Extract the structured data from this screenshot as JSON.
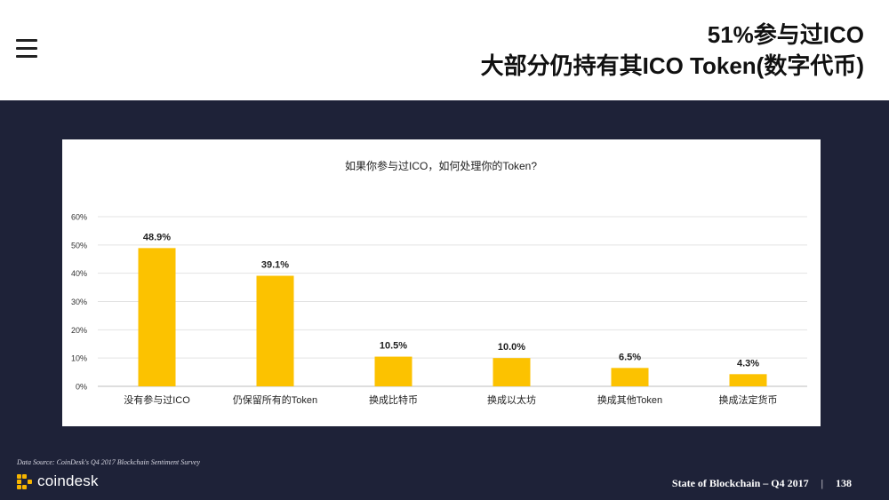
{
  "header": {
    "title_line1": "51%参与过ICO",
    "title_line2": "大部分仍持有其ICO Token(数字代币)"
  },
  "chart_data": {
    "type": "bar",
    "title": "如果你参与过ICO，如何处理你的Token?",
    "categories": [
      "没有参与过ICO",
      "仍保留所有的Token",
      "换成比特币",
      "换成以太坊",
      "换成其他Token",
      "换成法定货币"
    ],
    "values": [
      48.9,
      39.1,
      10.5,
      10.0,
      6.5,
      4.3
    ],
    "data_labels": [
      "48.9%",
      "39.1%",
      "10.5%",
      "10.0%",
      "6.5%",
      "4.3%"
    ],
    "yticks": [
      "0%",
      "10%",
      "20%",
      "30%",
      "40%",
      "50%",
      "60%"
    ],
    "ylim": [
      0,
      60
    ],
    "grid": true,
    "bar_color": "#fcc200"
  },
  "footer": {
    "source": "Data Source: CoinDesk's Q4 2017 Blockchain Sentiment Survey",
    "brand": "coindesk",
    "report": "State of Blockchain – Q4 2017",
    "separator": "|",
    "page": "138"
  },
  "colors": {
    "background": "#1e2238",
    "accent": "#fcc200"
  }
}
